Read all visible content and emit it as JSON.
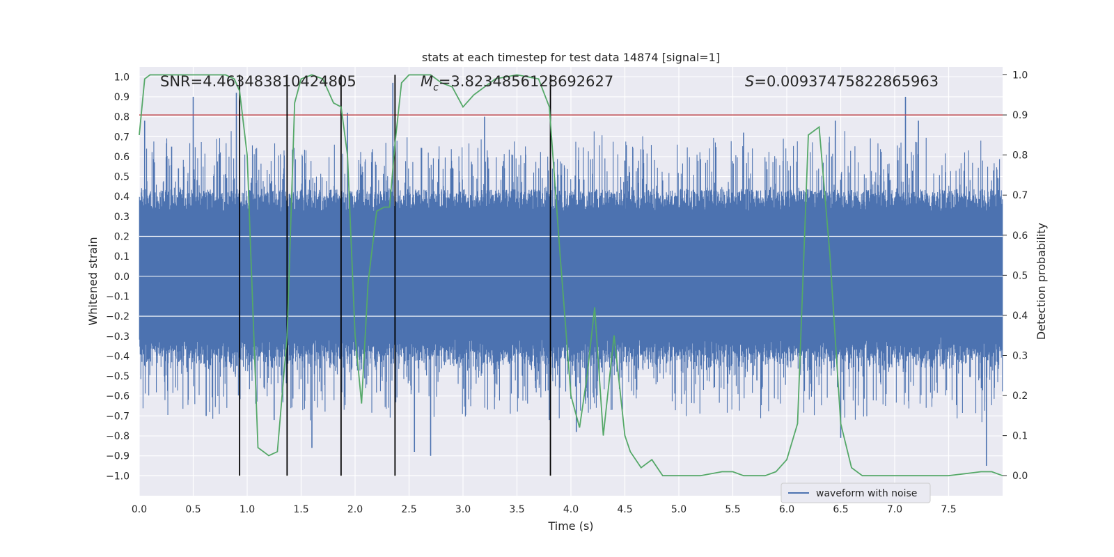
{
  "chart_data": {
    "type": "line",
    "title": "stats at each timestep for test data 14874 [signal=1]",
    "xlabel": "Time (s)",
    "ylabel_left": "Whitened strain",
    "ylabel_right": "Detection probability",
    "xlim": [
      0.0,
      8.0
    ],
    "ylim_left": [
      -1.1,
      1.05
    ],
    "ylim_right": [
      -0.05,
      1.02
    ],
    "x_ticks": [
      "0.0",
      "0.5",
      "1.0",
      "1.5",
      "2.0",
      "2.5",
      "3.0",
      "3.5",
      "4.0",
      "4.5",
      "5.0",
      "5.5",
      "6.0",
      "6.5",
      "7.0",
      "7.5"
    ],
    "y_left_ticks": [
      "1.0",
      "0.9",
      "0.8",
      "0.7",
      "0.6",
      "0.5",
      "0.4",
      "0.3",
      "0.2",
      "0.1",
      "0.0",
      "−0.1",
      "−0.2",
      "−0.3",
      "−0.4",
      "−0.5",
      "−0.6",
      "−0.7",
      "−0.8",
      "−0.9",
      "−1.0"
    ],
    "y_right_ticks": [
      "1.0",
      "0.9",
      "0.8",
      "0.7",
      "0.6",
      "0.5",
      "0.4",
      "0.3",
      "0.2",
      "0.1",
      "0.0"
    ],
    "grid": true,
    "legend_position": "lower-right",
    "annotations": {
      "snr": "SNR=4.463483810424805",
      "mc_symbol": "M",
      "mc_sub": "c",
      "mc_value": "=3.8234856128692627",
      "s_symbol": "S",
      "s_value": "=0.00937475822865963"
    },
    "threshold_right": 0.9,
    "vertical_lines_x": [
      0.93,
      1.37,
      1.87,
      2.37,
      3.81
    ],
    "series": [
      {
        "name": "waveform with noise",
        "axis": "left",
        "style": "noise",
        "envelope_typical": 0.38,
        "spikes": [
          [
            0.05,
            0.78
          ],
          [
            0.3,
            0.65
          ],
          [
            0.5,
            0.9
          ],
          [
            0.62,
            -0.7
          ],
          [
            0.9,
            0.92
          ],
          [
            1.25,
            -0.72
          ],
          [
            1.6,
            -0.86
          ],
          [
            1.93,
            0.82
          ],
          [
            2.35,
            0.97
          ],
          [
            2.55,
            -0.88
          ],
          [
            2.7,
            -0.9
          ],
          [
            3.2,
            0.8
          ],
          [
            3.8,
            -0.72
          ],
          [
            4.05,
            -0.78
          ],
          [
            4.5,
            0.58
          ],
          [
            5.6,
            0.72
          ],
          [
            6.45,
            0.78
          ],
          [
            6.5,
            -0.81
          ],
          [
            7.1,
            0.9
          ],
          [
            7.22,
            0.78
          ],
          [
            7.85,
            -0.95
          ]
        ]
      },
      {
        "name": "detection probability",
        "axis": "right",
        "style": "line",
        "x": [
          0.0,
          0.05,
          0.1,
          0.2,
          0.4,
          0.6,
          0.8,
          0.88,
          0.93,
          1.0,
          1.1,
          1.2,
          1.28,
          1.37,
          1.44,
          1.5,
          1.6,
          1.7,
          1.75,
          1.8,
          1.87,
          1.93,
          2.0,
          2.06,
          2.12,
          2.2,
          2.27,
          2.32,
          2.37,
          2.43,
          2.5,
          2.6,
          2.7,
          2.8,
          2.9,
          3.0,
          3.1,
          3.15,
          3.3,
          3.5,
          3.7,
          3.8,
          3.9,
          4.0,
          4.08,
          4.15,
          4.22,
          4.3,
          4.4,
          4.5,
          4.55,
          4.65,
          4.75,
          4.85,
          5.0,
          5.2,
          5.4,
          5.5,
          5.6,
          5.8,
          5.9,
          6.0,
          6.1,
          6.2,
          6.3,
          6.4,
          6.5,
          6.6,
          6.7,
          6.9,
          7.1,
          7.2,
          7.5,
          7.8,
          7.9,
          8.0
        ],
        "y": [
          0.85,
          0.99,
          1.0,
          1.0,
          1.0,
          1.0,
          1.0,
          0.99,
          0.96,
          0.8,
          0.07,
          0.05,
          0.06,
          0.35,
          0.93,
          0.99,
          1.0,
          0.99,
          0.96,
          0.93,
          0.92,
          0.8,
          0.35,
          0.18,
          0.48,
          0.66,
          0.67,
          0.67,
          0.83,
          0.98,
          1.0,
          1.0,
          1.0,
          0.98,
          0.97,
          0.92,
          0.95,
          0.96,
          0.99,
          1.0,
          0.99,
          0.92,
          0.55,
          0.2,
          0.12,
          0.25,
          0.42,
          0.1,
          0.35,
          0.1,
          0.06,
          0.02,
          0.04,
          0.0,
          0.0,
          0.0,
          0.01,
          0.01,
          0.0,
          0.0,
          0.01,
          0.04,
          0.13,
          0.85,
          0.87,
          0.55,
          0.13,
          0.02,
          0.0,
          0.0,
          0.0,
          0.0,
          0.0,
          0.01,
          0.01,
          0.0
        ]
      }
    ],
    "colors": {
      "background": "#eaeaf2",
      "grid": "#ffffff",
      "waveform": "#4c72b0",
      "probability": "#55a868",
      "threshold": "#c44e52",
      "vlines": "#000000"
    }
  }
}
